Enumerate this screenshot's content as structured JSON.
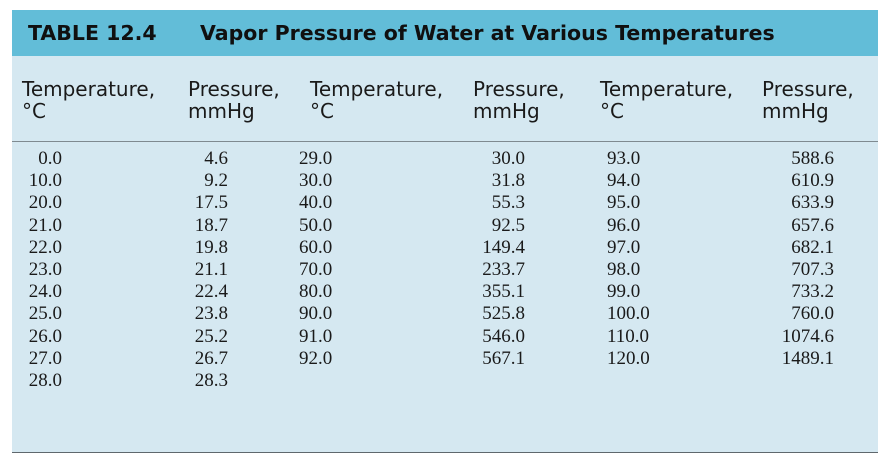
{
  "table": {
    "label": "TABLE 12.4",
    "title": "Vapor Pressure of Water at Various Temperatures",
    "headers": [
      [
        "Temperature,",
        "°C"
      ],
      [
        "Pressure,",
        "mmHg"
      ],
      [
        "Temperature,",
        "°C"
      ],
      [
        "Pressure,",
        "mmHg"
      ],
      [
        "Temperature,",
        "°C"
      ],
      [
        "Pressure,",
        "mmHg"
      ]
    ],
    "columns": [
      [
        "0.0",
        "10.0",
        "20.0",
        "21.0",
        "22.0",
        "23.0",
        "24.0",
        "25.0",
        "26.0",
        "27.0",
        "28.0"
      ],
      [
        "4.6",
        "9.2",
        "17.5",
        "18.7",
        "19.8",
        "21.1",
        "22.4",
        "23.8",
        "25.2",
        "26.7",
        "28.3"
      ],
      [
        "29.0",
        "30.0",
        "40.0",
        "50.0",
        "60.0",
        "70.0",
        "80.0",
        "90.0",
        "91.0",
        "92.0"
      ],
      [
        "30.0",
        "31.8",
        "55.3",
        "92.5",
        "149.4",
        "233.7",
        "355.1",
        "525.8",
        "546.0",
        "567.1"
      ],
      [
        "93.0",
        "94.0",
        "95.0",
        "96.0",
        "97.0",
        "98.0",
        "99.0",
        "100.0",
        "110.0",
        "120.0"
      ],
      [
        "588.6",
        "610.9",
        "633.9",
        "657.6",
        "682.1",
        "707.3",
        "733.2",
        "760.0",
        "1074.6",
        "1489.1"
      ]
    ]
  }
}
